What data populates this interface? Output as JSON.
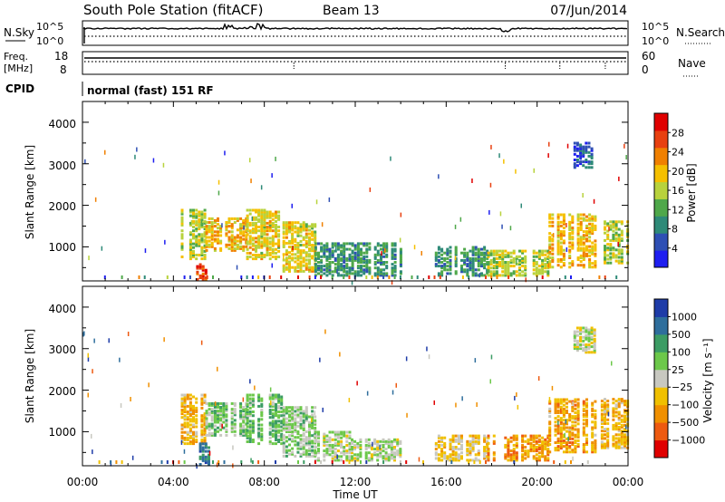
{
  "header": {
    "station": "South Pole Station (fitACF)",
    "beam": "Beam 13",
    "date": "07/Jun/2014"
  },
  "noise_panel": {
    "left_label": "N.Sky",
    "right_label": "N.Search",
    "left_ticks": [
      "10^5",
      "10^0"
    ],
    "right_ticks": [
      "10^5",
      "10^0"
    ]
  },
  "freq_panel": {
    "left_label_line1": "Freq.",
    "left_label_line2": "[MHz]",
    "left_ticks": [
      "18",
      "8"
    ],
    "right_label": "Nave",
    "right_ticks": [
      "60",
      "0"
    ]
  },
  "cpid": {
    "label": "CPID",
    "text": "normal (fast) 151 RF"
  },
  "power_panel": {
    "ylabel": "Slant Range [km]",
    "yticks": [
      "4000",
      "3000",
      "2000",
      "1000"
    ],
    "colorbar_label": "Power [dB]",
    "colorbar_ticks": [
      "28",
      "24",
      "20",
      "16",
      "12",
      "8",
      "4"
    ]
  },
  "velocity_panel": {
    "ylabel": "Slant Range [km]",
    "yticks": [
      "4000",
      "3000",
      "2000",
      "1000"
    ],
    "colorbar_label": "Velocity [m s⁻¹]",
    "colorbar_ticks": [
      "1000",
      "500",
      "100",
      "25",
      "−25",
      "−100",
      "−500",
      "−1000"
    ]
  },
  "xaxis": {
    "label": "Time UT",
    "ticks": [
      "00:00",
      "04:00",
      "08:00",
      "12:00",
      "16:00",
      "20:00",
      "00:00"
    ]
  },
  "colors": {
    "power_scale": [
      "#1e1ef0",
      "#2e4fb4",
      "#2e8a78",
      "#4fa84a",
      "#b8d23c",
      "#f5c000",
      "#f08000",
      "#e84010",
      "#e00000"
    ],
    "velocity_scale": [
      "#1e3ca8",
      "#2e6e9c",
      "#3c9c64",
      "#6cc84a",
      "#c8c8c0",
      "#f0c000",
      "#f09000",
      "#ee5a10",
      "#e00000"
    ]
  },
  "chart_data": [
    {
      "type": "heatmap",
      "title": "Power",
      "x": [
        "00:00",
        "04:00",
        "08:00",
        "12:00",
        "16:00",
        "20:00",
        "00:00"
      ],
      "xlabel": "Time UT",
      "ylabel": "Slant Range [km]",
      "ylim": [
        180,
        4500
      ],
      "colorbar": {
        "label": "Power [dB]",
        "range": [
          0,
          32
        ]
      },
      "regions": [
        {
          "t": [
            4.2,
            5.4
          ],
          "r": [
            700,
            1900
          ],
          "v": 16
        },
        {
          "t": [
            5.0,
            5.5
          ],
          "r": [
            200,
            600
          ],
          "v": 26
        },
        {
          "t": [
            5.4,
            7.2
          ],
          "r": [
            900,
            1700
          ],
          "v": 20
        },
        {
          "t": [
            7.2,
            8.8
          ],
          "r": [
            700,
            1900
          ],
          "v": 18
        },
        {
          "t": [
            8.8,
            10.2
          ],
          "r": [
            400,
            1600
          ],
          "v": 18
        },
        {
          "t": [
            10.2,
            14.0
          ],
          "r": [
            300,
            1100
          ],
          "v": 10
        },
        {
          "t": [
            15.5,
            17.8
          ],
          "r": [
            300,
            1000
          ],
          "v": 10
        },
        {
          "t": [
            17.8,
            20.5
          ],
          "r": [
            300,
            900
          ],
          "v": 16
        },
        {
          "t": [
            20.5,
            22.6
          ],
          "r": [
            500,
            1800
          ],
          "v": 20
        },
        {
          "t": [
            21.6,
            22.6
          ],
          "r": [
            2900,
            3500
          ],
          "v": 6
        },
        {
          "t": [
            22.8,
            24.0
          ],
          "r": [
            600,
            1600
          ],
          "v": 16
        }
      ]
    },
    {
      "type": "heatmap",
      "title": "Velocity",
      "x": [
        "00:00",
        "04:00",
        "08:00",
        "12:00",
        "16:00",
        "20:00",
        "00:00"
      ],
      "xlabel": "Time UT",
      "ylabel": "Slant Range [km]",
      "ylim": [
        180,
        4500
      ],
      "colorbar": {
        "label": "Velocity [m s⁻¹]",
        "range": [
          -1000,
          1000
        ]
      },
      "regions": [
        {
          "t": [
            4.2,
            5.4
          ],
          "r": [
            700,
            1900
          ],
          "v": -300
        },
        {
          "t": [
            5.0,
            5.6
          ],
          "r": [
            200,
            700
          ],
          "v": 600
        },
        {
          "t": [
            5.4,
            7.2
          ],
          "r": [
            900,
            1700
          ],
          "v": 200
        },
        {
          "t": [
            7.2,
            8.8
          ],
          "r": [
            700,
            1900
          ],
          "v": 300
        },
        {
          "t": [
            8.8,
            10.2
          ],
          "r": [
            400,
            1600
          ],
          "v": 150
        },
        {
          "t": [
            10.2,
            11.8
          ],
          "r": [
            300,
            1000
          ],
          "v": 80
        },
        {
          "t": [
            11.8,
            14.0
          ],
          "r": [
            300,
            800
          ],
          "v": 60
        },
        {
          "t": [
            15.5,
            17.8
          ],
          "r": [
            300,
            900
          ],
          "v": -150
        },
        {
          "t": [
            17.8,
            20.5
          ],
          "r": [
            300,
            900
          ],
          "v": -400
        },
        {
          "t": [
            20.5,
            22.6
          ],
          "r": [
            500,
            1800
          ],
          "v": -350
        },
        {
          "t": [
            21.6,
            22.6
          ],
          "r": [
            2900,
            3500
          ],
          "v": 10
        },
        {
          "t": [
            22.8,
            24.0
          ],
          "r": [
            600,
            1800
          ],
          "v": -300
        }
      ]
    }
  ]
}
